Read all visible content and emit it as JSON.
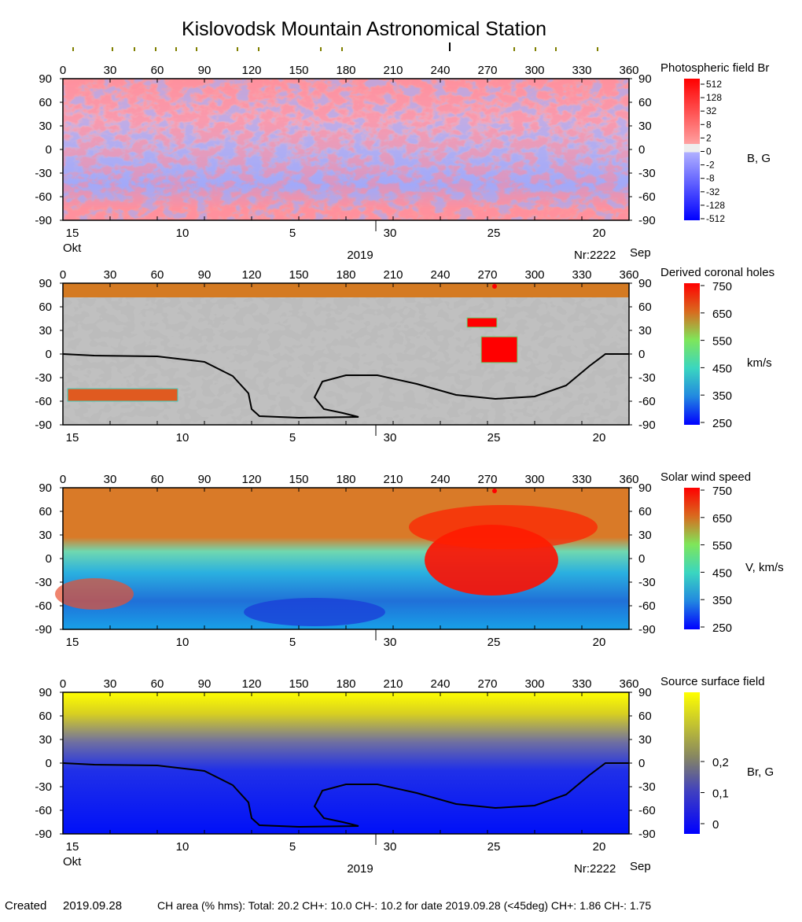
{
  "title": "Kislovodsk Mountain Astronomical Station",
  "footer": {
    "created_label": "Created",
    "created_date": "2019.09.28",
    "ch_area": "CH area (% hms): Total: 20.2 CH+: 10.0   CH-: 10.2 for date 2019.09.28 (<45deg) CH+: 1.86    CH-: 1.75"
  },
  "top_markers": {
    "longitudes": [
      6.5,
      31.5,
      45.5,
      59,
      72,
      85,
      111,
      124.5,
      164,
      177.5,
      340,
      287,
      300.5,
      313.5
    ],
    "current_longitude": 246,
    "marker_color": "#808000"
  },
  "axes": {
    "lon_ticks": [
      "0",
      "30",
      "60",
      "90",
      "120",
      "150",
      "180",
      "210",
      "240",
      "270",
      "300",
      "330",
      "360"
    ],
    "lat_ticks": [
      "90",
      "60",
      "30",
      "0",
      "-30",
      "-60",
      "-90"
    ],
    "date_ticks": [
      {
        "label": "15",
        "lon": 6
      },
      {
        "label": "10",
        "lon": 76
      },
      {
        "label": "5",
        "lon": 146
      },
      {
        "label": "30",
        "lon": 208
      },
      {
        "label": "25",
        "lon": 274
      },
      {
        "label": "20",
        "lon": 341
      }
    ],
    "month_left": "Okt",
    "month_right": "Sep",
    "year": "2019",
    "rotation": "Nr:2222"
  },
  "chart_data": [
    {
      "type": "heatmap",
      "title": "Photospheric field Br",
      "unit": "B, G",
      "xlim": [
        0,
        360
      ],
      "ylim": [
        -90,
        90
      ],
      "colorbar_ticks": [
        "512",
        "128",
        "32",
        "8",
        "2",
        "0",
        "-2",
        "-8",
        "-32",
        "-128",
        "-512"
      ],
      "colors": {
        "positive": "#ff0000",
        "negative": "#0000ff",
        "zero": "#eeeeee"
      }
    },
    {
      "type": "heatmap",
      "title": "Derived coronal holes",
      "unit": "km/s",
      "xlim": [
        0,
        360
      ],
      "ylim": [
        -90,
        90
      ],
      "colorbar_ticks": [
        "750",
        "650",
        "550",
        "450",
        "350",
        "250"
      ],
      "neutral_line": true
    },
    {
      "type": "heatmap",
      "title": "Solar wind speed",
      "unit": "V, km/s",
      "xlim": [
        0,
        360
      ],
      "ylim": [
        -90,
        90
      ],
      "colorbar_ticks": [
        "750",
        "650",
        "550",
        "450",
        "350",
        "250"
      ]
    },
    {
      "type": "heatmap",
      "title": "Source surface field",
      "unit": "Br, G",
      "xlim": [
        0,
        360
      ],
      "ylim": [
        -90,
        90
      ],
      "colorbar_ticks": [
        "0,2",
        "0,1",
        "0"
      ],
      "neutral_line": true
    }
  ],
  "neutral_line": [
    [
      0,
      0
    ],
    [
      20,
      -2
    ],
    [
      60,
      -3
    ],
    [
      90,
      -10
    ],
    [
      108,
      -28
    ],
    [
      118,
      -50
    ],
    [
      120,
      -70
    ],
    [
      125,
      -79
    ],
    [
      150,
      -81
    ],
    [
      188,
      -80
    ],
    [
      178,
      -75
    ],
    [
      166,
      -70
    ],
    [
      160,
      -55
    ],
    [
      165,
      -35
    ],
    [
      180,
      -27
    ],
    [
      200,
      -27
    ],
    [
      225,
      -38
    ],
    [
      250,
      -52
    ],
    [
      275,
      -57
    ],
    [
      300,
      -54
    ],
    [
      320,
      -40
    ],
    [
      335,
      -15
    ],
    [
      345,
      0
    ],
    [
      360,
      0
    ]
  ]
}
